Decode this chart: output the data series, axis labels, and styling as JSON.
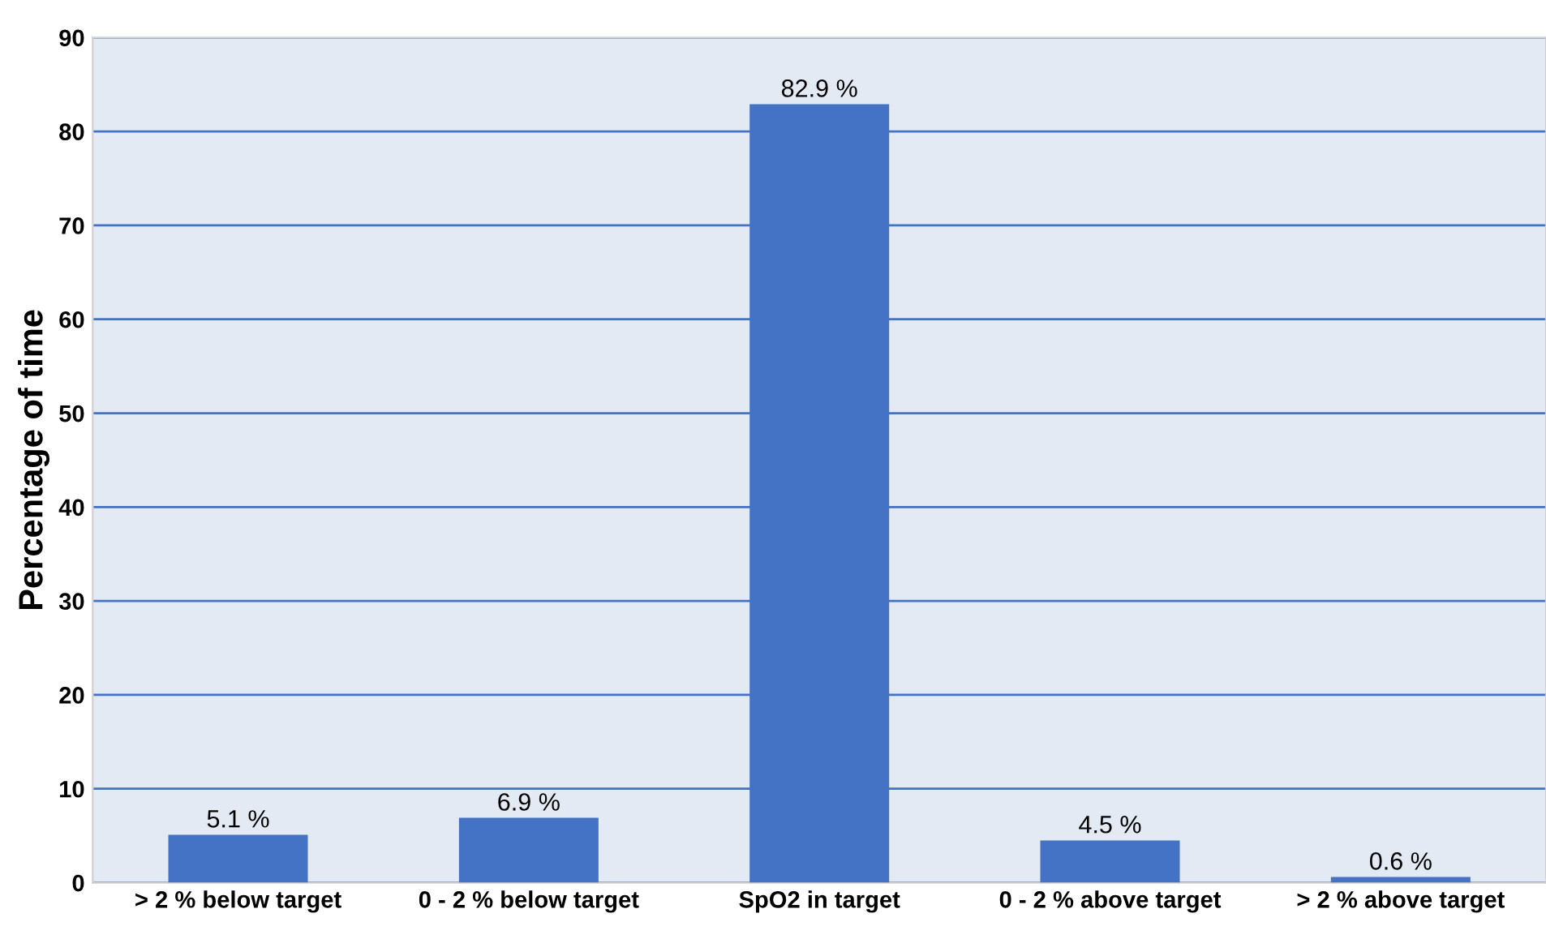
{
  "chart_data": {
    "type": "bar",
    "ylabel": "Percentage of time",
    "categories": [
      "> 2 % below target",
      "0 - 2 % below target",
      "SpO2 in target",
      "0 - 2 % above target",
      "> 2 % above target"
    ],
    "values": [
      5.1,
      6.9,
      82.9,
      4.5,
      0.6
    ],
    "value_labels": [
      "5.1 %",
      "6.9 %",
      "82.9 %",
      "4.5 %",
      "0.6 %"
    ],
    "color": "#4472c4",
    "ylim": [
      0,
      90
    ],
    "yticks": [
      0,
      10,
      20,
      30,
      40,
      50,
      60,
      70,
      80,
      90
    ],
    "grid": "y",
    "legend": false
  }
}
